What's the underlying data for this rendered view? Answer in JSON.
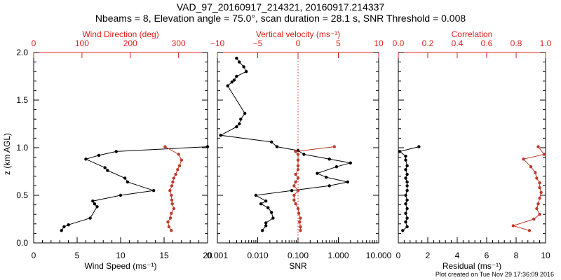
{
  "title": {
    "line1": "VAD_97_20160917_214321, 20160917.214337",
    "line2": "Nbeams = 8, Elevation angle = 75.0°, scan duration = 28.1 s, SNR Threshold = 0.008"
  },
  "footer": "Plot created on Tue Nov 29 17:36:09 2016",
  "colors": {
    "black_series": "#000000",
    "red_series": "#c0392b",
    "top_axis": "#e0201b"
  },
  "y_axis": {
    "label": "z (km AGL)",
    "range": [
      0,
      2.0
    ],
    "ticks": [
      "0.0",
      "0.5",
      "1.0",
      "1.5",
      "2.0"
    ]
  },
  "chart_data": [
    {
      "type": "line",
      "panel": "wind",
      "xlabel": "Wind Speed (ms⁻¹)",
      "xlim": [
        0,
        20
      ],
      "xticks": [
        "0",
        "5",
        "10",
        "15",
        "20"
      ],
      "top_label": "Wind Direction (deg)",
      "top_lim": [
        0,
        360
      ],
      "top_ticks": [
        "0",
        "100",
        "200",
        "300"
      ],
      "series": [
        {
          "axis": "bottom",
          "color": "black",
          "points": [
            [
              3.2,
              0.13
            ],
            [
              3.5,
              0.17
            ],
            [
              4.0,
              0.19
            ],
            [
              6.5,
              0.26
            ],
            [
              7.3,
              0.38
            ],
            [
              7.0,
              0.41
            ],
            [
              6.8,
              0.44
            ],
            [
              10.0,
              0.5
            ],
            [
              13.8,
              0.55
            ],
            [
              10.8,
              0.64
            ],
            [
              10.5,
              0.68
            ],
            [
              8.5,
              0.76
            ],
            [
              8.2,
              0.79
            ],
            [
              6.0,
              0.88
            ],
            [
              7.5,
              0.92
            ],
            [
              9.5,
              0.96
            ],
            [
              20.0,
              1.01
            ]
          ]
        },
        {
          "axis": "top",
          "color": "red",
          "points": [
            [
              285,
              0.13
            ],
            [
              280,
              0.17
            ],
            [
              278,
              0.22
            ],
            [
              283,
              0.26
            ],
            [
              285,
              0.31
            ],
            [
              290,
              0.36
            ],
            [
              287,
              0.41
            ],
            [
              286,
              0.45
            ],
            [
              285,
              0.5
            ],
            [
              282,
              0.55
            ],
            [
              286,
              0.6
            ],
            [
              288,
              0.64
            ],
            [
              290,
              0.68
            ],
            [
              294,
              0.72
            ],
            [
              298,
              0.77
            ],
            [
              302,
              0.81
            ],
            [
              306,
              0.87
            ],
            [
              300,
              0.93
            ],
            [
              272,
              1.01
            ]
          ]
        }
      ]
    },
    {
      "type": "line",
      "panel": "velocity",
      "xlabel": "SNR",
      "xscale": "log",
      "xlim": [
        0.001,
        10
      ],
      "xticks": [
        "0.001",
        "0.010",
        "0.100",
        "1.000",
        "10.000"
      ],
      "top_label": "Vertical velocity (ms⁻¹)",
      "top_lim": [
        -10,
        10
      ],
      "top_ticks": [
        "−10",
        "−5",
        "0",
        "5",
        "10"
      ],
      "reference_line": 0,
      "series": [
        {
          "axis": "bottom",
          "color": "black",
          "points": [
            [
              0.013,
              0.13
            ],
            [
              0.016,
              0.18
            ],
            [
              0.016,
              0.21
            ],
            [
              0.024,
              0.26
            ],
            [
              0.022,
              0.32
            ],
            [
              0.018,
              0.37
            ],
            [
              0.012,
              0.41
            ],
            [
              0.016,
              0.44
            ],
            [
              0.009,
              0.5
            ],
            [
              0.07,
              0.55
            ],
            [
              0.6,
              0.6
            ],
            [
              1.7,
              0.64
            ],
            [
              0.5,
              0.69
            ],
            [
              0.3,
              0.73
            ],
            [
              0.9,
              0.8
            ],
            [
              2.0,
              0.84
            ],
            [
              0.6,
              0.88
            ],
            [
              0.14,
              0.93
            ],
            [
              0.1,
              0.97
            ],
            [
              0.03,
              1.01
            ],
            [
              0.022,
              1.06
            ],
            [
              0.0012,
              1.13
            ],
            [
              0.003,
              1.22
            ],
            [
              0.0035,
              1.25
            ],
            [
              0.0038,
              1.3
            ],
            [
              0.0048,
              1.36
            ],
            [
              0.0018,
              1.65
            ],
            [
              0.0023,
              1.69
            ],
            [
              0.0026,
              1.71
            ],
            [
              0.003,
              1.75
            ],
            [
              0.0052,
              1.8
            ],
            [
              0.0045,
              1.85
            ],
            [
              0.0035,
              1.9
            ],
            [
              0.003,
              1.94
            ]
          ]
        },
        {
          "axis": "top",
          "color": "red",
          "points": [
            [
              0.3,
              0.13
            ],
            [
              0.3,
              0.17
            ],
            [
              0.2,
              0.22
            ],
            [
              0.3,
              0.26
            ],
            [
              0.1,
              0.31
            ],
            [
              0.0,
              0.36
            ],
            [
              -0.3,
              0.41
            ],
            [
              -0.5,
              0.45
            ],
            [
              -0.5,
              0.5
            ],
            [
              0.0,
              0.55
            ],
            [
              -0.5,
              0.6
            ],
            [
              -0.3,
              0.64
            ],
            [
              0.0,
              0.68
            ],
            [
              -0.3,
              0.72
            ],
            [
              0.0,
              0.77
            ],
            [
              0.0,
              0.81
            ],
            [
              0.0,
              0.87
            ],
            [
              0.0,
              0.93
            ],
            [
              -0.3,
              0.96
            ],
            [
              4.5,
              1.01
            ]
          ]
        }
      ]
    },
    {
      "type": "line",
      "panel": "residual",
      "xlabel": "Residual (ms⁻¹)",
      "xlim": [
        0,
        10
      ],
      "xticks": [
        "0",
        "2",
        "4",
        "6",
        "8",
        "10"
      ],
      "top_label": "Correlation",
      "top_lim": [
        0,
        1.0
      ],
      "top_ticks": [
        "0.0",
        "0.2",
        "0.4",
        "0.6",
        "0.8",
        "1.0"
      ],
      "series": [
        {
          "axis": "bottom",
          "color": "black",
          "points": [
            [
              0.3,
              0.13
            ],
            [
              0.6,
              0.17
            ],
            [
              0.5,
              0.22
            ],
            [
              0.6,
              0.26
            ],
            [
              0.5,
              0.31
            ],
            [
              0.6,
              0.36
            ],
            [
              0.5,
              0.41
            ],
            [
              0.6,
              0.45
            ],
            [
              0.5,
              0.5
            ],
            [
              0.6,
              0.55
            ],
            [
              0.6,
              0.6
            ],
            [
              0.6,
              0.64
            ],
            [
              0.5,
              0.68
            ],
            [
              0.6,
              0.72
            ],
            [
              0.5,
              0.77
            ],
            [
              0.6,
              0.81
            ],
            [
              0.5,
              0.87
            ],
            [
              0.5,
              0.91
            ],
            [
              0.1,
              0.96
            ],
            [
              1.4,
              1.01
            ]
          ]
        },
        {
          "axis": "top",
          "color": "red",
          "points": [
            [
              0.89,
              0.13
            ],
            [
              0.78,
              0.18
            ],
            [
              0.92,
              0.25
            ],
            [
              0.96,
              0.3
            ],
            [
              0.94,
              0.36
            ],
            [
              0.95,
              0.41
            ],
            [
              0.96,
              0.47
            ],
            [
              0.97,
              0.53
            ],
            [
              0.96,
              0.58
            ],
            [
              0.96,
              0.63
            ],
            [
              0.94,
              0.68
            ],
            [
              0.93,
              0.74
            ],
            [
              0.9,
              0.8
            ],
            [
              0.85,
              0.88
            ],
            [
              0.99,
              0.93
            ],
            [
              0.95,
              1.01
            ]
          ]
        }
      ]
    }
  ]
}
